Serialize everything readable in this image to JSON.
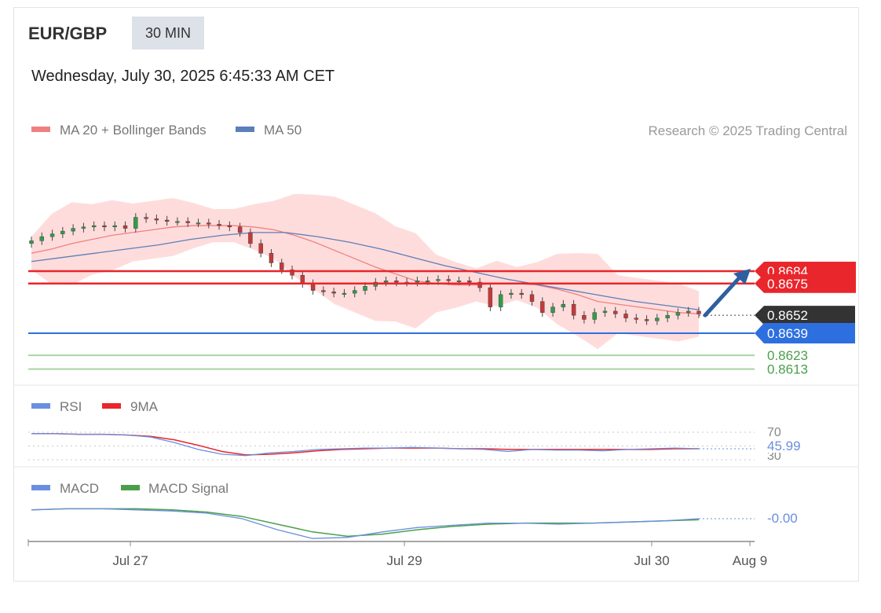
{
  "header": {
    "symbol": "EUR/GBP",
    "timeframe": "30 MIN",
    "datetime": "Wednesday, July 30, 2025 6:45:33 AM CET"
  },
  "legend": {
    "ma20": "MA 20 + Bollinger Bands",
    "ma50": "MA 50",
    "credit": "Research © 2025 Trading Central",
    "rsi": "RSI",
    "rsi_ma": "9MA",
    "macd": "MACD",
    "macd_signal": "MACD Signal"
  },
  "colors": {
    "resistance": "#e8262b",
    "support": "#2e6fe0",
    "target": "#4aa04a",
    "price_box": "#333333",
    "ma20": "#f08080",
    "band_fill": "#ffd6d6",
    "ma50": "#5b7fb8",
    "arrow": "#2f5f9e",
    "rsi": "#6b8fe0",
    "rsi_ma": "#e8262b",
    "macd": "#6b8fe0",
    "macd_signal": "#4aa04a",
    "bull": "#2e9e49",
    "bear": "#c23b3b"
  },
  "chart_data": [
    {
      "type": "candlestick",
      "title": "EUR/GBP 30 MIN",
      "x_ticks": [
        "Jul 27",
        "Jul 29",
        "Jul 30",
        "Aug 9"
      ],
      "price_levels": [
        {
          "label": "0.8684",
          "value": 0.8684,
          "kind": "resistance"
        },
        {
          "label": "0.8675",
          "value": 0.8675,
          "kind": "resistance"
        },
        {
          "label": "0.8652",
          "value": 0.8652,
          "kind": "last_price"
        },
        {
          "label": "0.8639",
          "value": 0.8639,
          "kind": "support"
        },
        {
          "label": "0.8623",
          "value": 0.8623,
          "kind": "target"
        },
        {
          "label": "0.8613",
          "value": 0.8613,
          "kind": "target"
        }
      ],
      "close_series": [
        0.8706,
        0.8709,
        0.8711,
        0.8713,
        0.8715,
        0.8716,
        0.8717,
        0.8716,
        0.8717,
        0.8715,
        0.8723,
        0.8722,
        0.8721,
        0.872,
        0.872,
        0.8719,
        0.8719,
        0.8718,
        0.8717,
        0.8716,
        0.8712,
        0.8704,
        0.8697,
        0.869,
        0.8685,
        0.8681,
        0.8675,
        0.867,
        0.8669,
        0.8668,
        0.8668,
        0.867,
        0.8673,
        0.8676,
        0.8677,
        0.8676,
        0.8676,
        0.8677,
        0.8677,
        0.8678,
        0.8677,
        0.8677,
        0.8676,
        0.8672,
        0.8658,
        0.8667,
        0.8668,
        0.8667,
        0.8662,
        0.8654,
        0.8658,
        0.866,
        0.8652,
        0.8649,
        0.8654,
        0.8655,
        0.8653,
        0.865,
        0.8649,
        0.8648,
        0.865,
        0.8652,
        0.8654,
        0.8655,
        0.8653
      ],
      "ma20_series": [
        0.8697,
        0.87,
        0.8704,
        0.8707,
        0.871,
        0.8712,
        0.8714,
        0.8716,
        0.8717,
        0.8717,
        0.8717,
        0.8716,
        0.8714,
        0.871,
        0.8705,
        0.8699,
        0.8693,
        0.8687,
        0.8682,
        0.8677,
        0.8675,
        0.8674,
        0.8674,
        0.8675,
        0.8675,
        0.8674,
        0.8671,
        0.8667,
        0.8662,
        0.866,
        0.8658,
        0.8656,
        0.8654,
        0.8653
      ],
      "ma50_series": [
        0.8691,
        0.8694,
        0.8697,
        0.87,
        0.8703,
        0.8707,
        0.871,
        0.8712,
        0.8712,
        0.8709,
        0.8705,
        0.87,
        0.8694,
        0.8688,
        0.8683,
        0.8678,
        0.8674,
        0.867,
        0.8666,
        0.8662,
        0.8659,
        0.8656
      ],
      "forecast": {
        "from": 0.8652,
        "to": 0.8684,
        "direction": "up"
      }
    },
    {
      "type": "line",
      "title": "RSI",
      "series": [
        {
          "name": "RSI",
          "values": [
            68,
            68,
            67,
            67,
            66,
            63,
            55,
            45,
            38,
            36,
            40,
            42,
            45,
            46,
            47,
            47,
            48,
            47,
            46,
            45,
            42,
            45,
            44,
            44,
            43,
            45,
            46,
            47,
            46
          ]
        },
        {
          "name": "9MA",
          "values": [
            68,
            68,
            67,
            67,
            66,
            64,
            59,
            51,
            42,
            37,
            38,
            40,
            43,
            45,
            46,
            47,
            47,
            47,
            46,
            46,
            45,
            45,
            45,
            45,
            45,
            45,
            45,
            46,
            46
          ]
        }
      ],
      "reference_lines": [
        70,
        30
      ],
      "last_value_label": "45.99",
      "level_labels": [
        "70",
        "30"
      ]
    },
    {
      "type": "line",
      "title": "MACD",
      "series": [
        {
          "name": "MACD",
          "values": [
            0.0008,
            0.0009,
            0.0009,
            0.0008,
            0.0007,
            0.0005,
            0.0,
            -0.001,
            -0.0018,
            -0.0017,
            -0.0012,
            -0.0008,
            -0.0006,
            -0.0004,
            -0.0004,
            -0.0005,
            -0.0004,
            -0.0003,
            -0.0002,
            0.0
          ]
        },
        {
          "name": "MACD Signal",
          "values": [
            0.0008,
            0.0009,
            0.0009,
            0.0009,
            0.0008,
            0.0006,
            0.0002,
            -0.0005,
            -0.0012,
            -0.0016,
            -0.0014,
            -0.001,
            -0.0007,
            -0.0005,
            -0.0004,
            -0.0004,
            -0.0004,
            -0.0003,
            -0.0002,
            -0.0001
          ]
        }
      ],
      "last_value_label": "-0.00"
    }
  ]
}
